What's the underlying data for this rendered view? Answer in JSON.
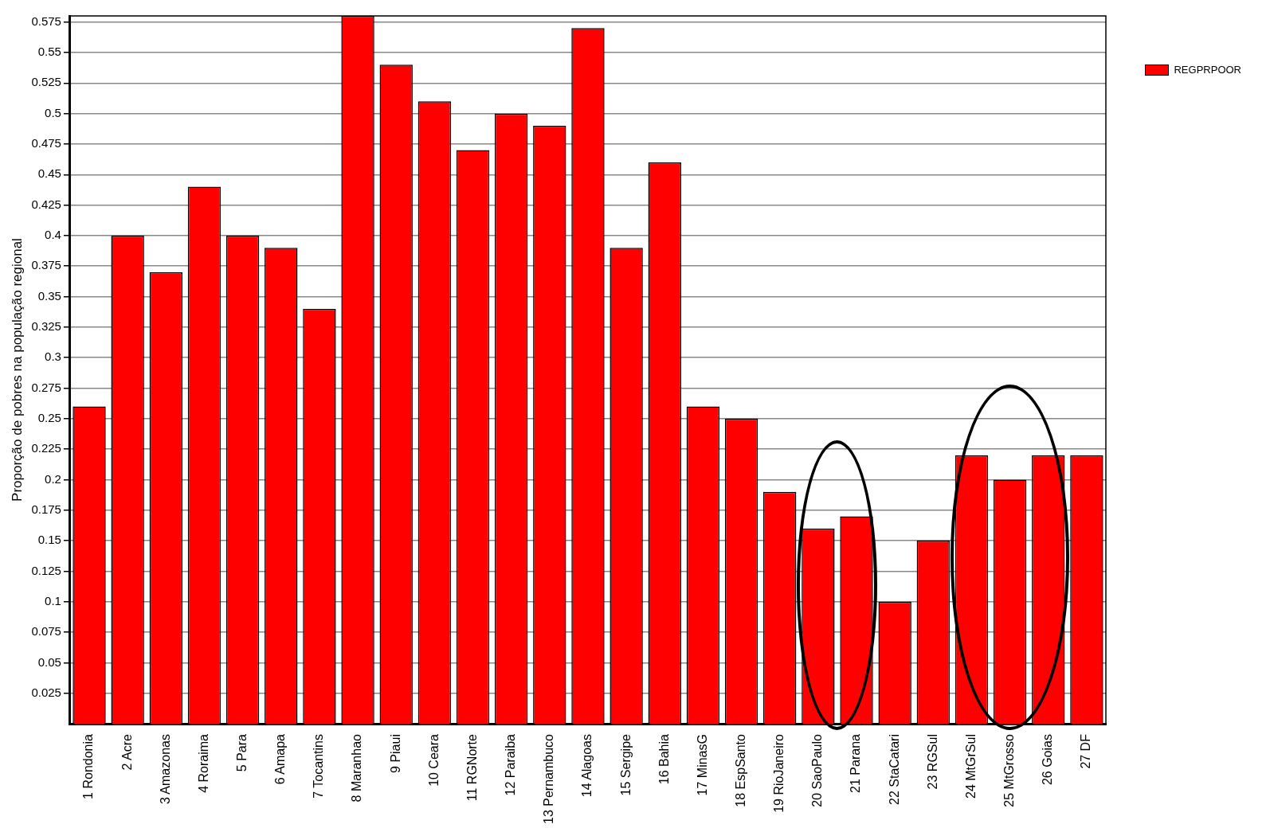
{
  "chart_data": {
    "type": "bar",
    "ylabel": "Proporção de pobres na população regional",
    "categories": [
      "1 Rondonia",
      "2 Acre",
      "3 Amazonas",
      "4 Roraima",
      "5 Para",
      "6 Amapa",
      "7 Tocantins",
      "8 Maranhao",
      "9 Piaui",
      "10 Ceara",
      "11 RGNorte",
      "12 Paraiba",
      "13 Pernambuco",
      "14 Alagoas",
      "15 Sergipe",
      "16 Bahia",
      "17 MinasG",
      "18 EspSanto",
      "19 RioJaneiro",
      "20 SaoPaulo",
      "21 Parana",
      "22 StaCatari",
      "23 RGSul",
      "24 MtGrSul",
      "25 MtGrosso",
      "26 Goias",
      "27 DF"
    ],
    "series": [
      {
        "name": "REGPRPOOR",
        "color": "#ff0000",
        "values": [
          0.26,
          0.4,
          0.37,
          0.44,
          0.4,
          0.39,
          0.34,
          0.58,
          0.54,
          0.51,
          0.47,
          0.5,
          0.49,
          0.57,
          0.39,
          0.46,
          0.26,
          0.25,
          0.19,
          0.16,
          0.17,
          0.1,
          0.15,
          0.22,
          0.2,
          0.22,
          0.22
        ]
      }
    ],
    "ylim": [
      0,
      0.58
    ],
    "yticks": [
      0.025,
      0.05,
      0.075,
      0.1,
      0.125,
      0.15,
      0.175,
      0.2,
      0.225,
      0.25,
      0.275,
      0.3,
      0.325,
      0.35,
      0.375,
      0.4,
      0.425,
      0.45,
      0.475,
      0.5,
      0.525,
      0.55,
      0.575
    ],
    "grid": "y",
    "legend": "top right"
  }
}
